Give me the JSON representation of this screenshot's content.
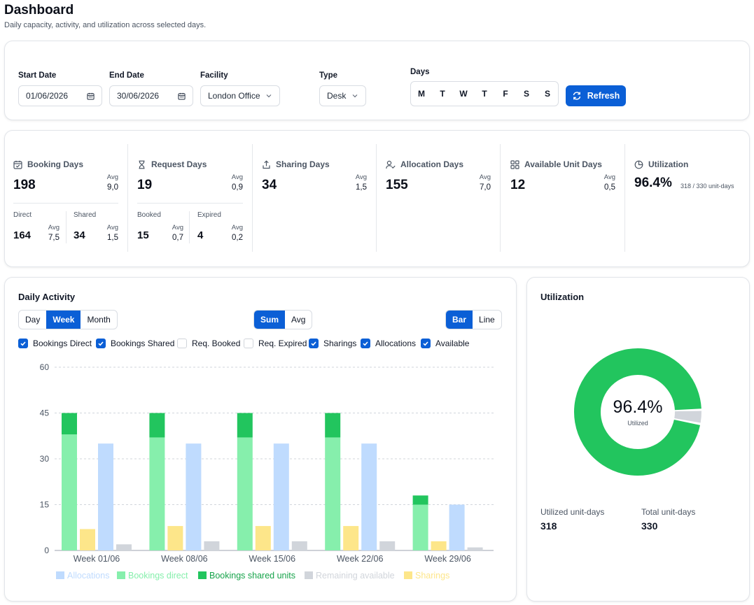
{
  "page": {
    "title": "Dashboard",
    "subtitle": "Daily capacity, activity, and utilization across selected days."
  },
  "filters": {
    "start_date": {
      "label": "Start Date",
      "value": "01/06/2026"
    },
    "end_date": {
      "label": "End Date",
      "value": "30/06/2026"
    },
    "facility": {
      "label": "Facility",
      "value": "London Office"
    },
    "type": {
      "label": "Type",
      "value": "Desk"
    },
    "days": {
      "label": "Days",
      "items": [
        {
          "label": "M",
          "active": true
        },
        {
          "label": "T",
          "active": true
        },
        {
          "label": "W",
          "active": true
        },
        {
          "label": "T",
          "active": true
        },
        {
          "label": "F",
          "active": true
        },
        {
          "label": "S",
          "active": false
        },
        {
          "label": "S",
          "active": false
        }
      ]
    },
    "refresh_label": "Refresh"
  },
  "stats": {
    "avg_label": "Avg",
    "booking": {
      "title": "Booking Days",
      "value": "198",
      "avg": "9,0",
      "direct": {
        "label": "Direct",
        "value": "164",
        "avg": "7,5"
      },
      "shared": {
        "label": "Shared",
        "value": "34",
        "avg": "1,5"
      }
    },
    "request": {
      "title": "Request Days",
      "value": "19",
      "avg": "0,9",
      "booked": {
        "label": "Booked",
        "value": "15",
        "avg": "0,7"
      },
      "expired": {
        "label": "Expired",
        "value": "4",
        "avg": "0,2"
      }
    },
    "sharing": {
      "title": "Sharing Days",
      "value": "34",
      "avg": "1,5"
    },
    "allocation": {
      "title": "Allocation Days",
      "value": "155",
      "avg": "7,0"
    },
    "available": {
      "title": "Available Unit Days",
      "value": "12",
      "avg": "0,5"
    },
    "utilization": {
      "title": "Utilization",
      "value": "96.4%",
      "detail": "318 / 330 unit-days"
    }
  },
  "activity": {
    "title": "Daily Activity",
    "period_tabs": [
      {
        "label": "Day",
        "active": false
      },
      {
        "label": "Week",
        "active": true
      },
      {
        "label": "Month",
        "active": false
      }
    ],
    "agg_tabs": [
      {
        "label": "Sum",
        "active": true
      },
      {
        "label": "Avg",
        "active": false
      }
    ],
    "type_tabs": [
      {
        "label": "Bar",
        "active": true
      },
      {
        "label": "Line",
        "active": false
      }
    ],
    "toggles": [
      {
        "label": "Bookings Direct",
        "checked": true
      },
      {
        "label": "Bookings Shared",
        "checked": true
      },
      {
        "label": "Req. Booked",
        "checked": false
      },
      {
        "label": "Req. Expired",
        "checked": false
      },
      {
        "label": "Sharings",
        "checked": true
      },
      {
        "label": "Allocations",
        "checked": true
      },
      {
        "label": "Available",
        "checked": true
      }
    ]
  },
  "chart_data": {
    "type": "bar",
    "categories": [
      "Week 01/06",
      "Week 08/06",
      "Week 15/06",
      "Week 22/06",
      "Week 29/06"
    ],
    "ylim": [
      0,
      60
    ],
    "yticks": [
      0,
      15,
      30,
      45,
      60
    ],
    "grid": true,
    "legend_position": "bottom",
    "series": [
      {
        "name": "Allocations",
        "values": [
          35,
          35,
          35,
          35,
          15
        ],
        "color": "#bfdbfe",
        "stack": "alloc"
      },
      {
        "name": "Bookings direct",
        "values": [
          38,
          37,
          37,
          37,
          15
        ],
        "color": "#86efac",
        "stack": "bookings"
      },
      {
        "name": "Bookings shared units",
        "values": [
          7,
          8,
          8,
          8,
          3
        ],
        "color": "#22c55e",
        "stack": "bookings"
      },
      {
        "name": "Remaining available",
        "values": [
          2,
          3,
          3,
          3,
          1
        ],
        "color": "#d1d5db",
        "stack": "avail"
      },
      {
        "name": "Sharings",
        "values": [
          7,
          8,
          8,
          8,
          3
        ],
        "color": "#fde68a",
        "stack": "share"
      }
    ]
  },
  "utilization_card": {
    "title": "Utilization",
    "percent": "96.4%",
    "center_label": "Utilized",
    "utilized_fraction": 0.964,
    "utilized_label": "Utilized unit-days",
    "utilized_value": "318",
    "total_label": "Total unit-days",
    "total_value": "330",
    "colors": {
      "utilized": "#22c55e",
      "remaining": "#d1d5db"
    }
  }
}
